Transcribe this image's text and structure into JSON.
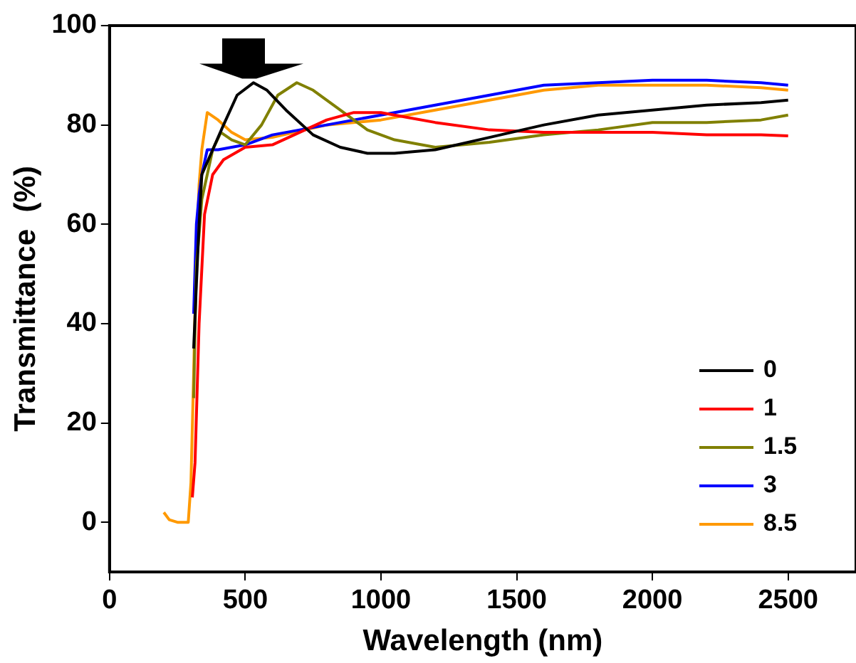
{
  "chart_data": {
    "type": "line",
    "xlabel": "Wavelength (nm)",
    "ylabel": "Transmittance  (%)",
    "xlim": [
      0,
      2750
    ],
    "ylim": [
      -10,
      100
    ],
    "xticks": [
      0,
      500,
      1000,
      1500,
      2000,
      2500
    ],
    "yticks": [
      0,
      20,
      40,
      60,
      80,
      100
    ],
    "legend": "bottom right",
    "grid": false,
    "marker": "none",
    "line_style": "solid",
    "series": [
      {
        "name": "0",
        "color": "#000000",
        "x": [
          310,
          320,
          330,
          340,
          380,
          420,
          470,
          530,
          580,
          650,
          750,
          850,
          950,
          1050,
          1200,
          1400,
          1600,
          1800,
          2000,
          2200,
          2400,
          2500
        ],
        "values": [
          35,
          48,
          60,
          70,
          75,
          80,
          86,
          88.5,
          87,
          83,
          78,
          75.5,
          74.3,
          74.3,
          75,
          77.5,
          80,
          82,
          83,
          84,
          84.5,
          85
        ]
      },
      {
        "name": "1",
        "color": "#ff0000",
        "x": [
          305,
          315,
          330,
          350,
          380,
          420,
          500,
          600,
          700,
          800,
          900,
          1000,
          1100,
          1200,
          1400,
          1600,
          1800,
          2000,
          2200,
          2400,
          2500
        ],
        "values": [
          5,
          12,
          40,
          62,
          70,
          73,
          75.5,
          76,
          78.5,
          81,
          82.5,
          82.5,
          81.5,
          80.5,
          79,
          78.5,
          78.5,
          78.5,
          78,
          78,
          77.8
        ]
      },
      {
        "name": "1.5",
        "color": "#808000",
        "x": [
          310,
          320,
          330,
          340,
          380,
          410,
          450,
          500,
          560,
          620,
          690,
          750,
          850,
          950,
          1050,
          1200,
          1400,
          1600,
          1800,
          2000,
          2200,
          2400,
          2500
        ],
        "values": [
          25,
          52,
          58,
          65,
          75,
          78.5,
          77,
          76,
          80,
          86,
          88.5,
          87,
          83,
          79,
          77,
          75.5,
          76.5,
          78,
          79,
          80.5,
          80.5,
          81,
          82
        ]
      },
      {
        "name": "3",
        "color": "#0000ff",
        "x": [
          310,
          320,
          330,
          340,
          360,
          400,
          500,
          600,
          800,
          1000,
          1200,
          1400,
          1600,
          1800,
          2000,
          2200,
          2400,
          2500
        ],
        "values": [
          42,
          60,
          66,
          70,
          75,
          75,
          76,
          78,
          80,
          82,
          84,
          86,
          88,
          88.5,
          89,
          89,
          88.5,
          88
        ]
      },
      {
        "name": "8.5",
        "color": "#ff9900",
        "x": [
          200,
          220,
          250,
          290,
          300,
          310,
          320,
          330,
          340,
          360,
          400,
          450,
          500,
          600,
          800,
          1000,
          1200,
          1400,
          1600,
          1800,
          2000,
          2200,
          2400,
          2500
        ],
        "values": [
          2,
          0.5,
          0,
          0,
          8,
          30,
          55,
          68,
          75,
          82.5,
          81,
          78.5,
          77,
          77.5,
          80,
          81,
          83,
          85,
          87,
          88,
          88,
          88,
          87.5,
          87
        ]
      }
    ]
  }
}
